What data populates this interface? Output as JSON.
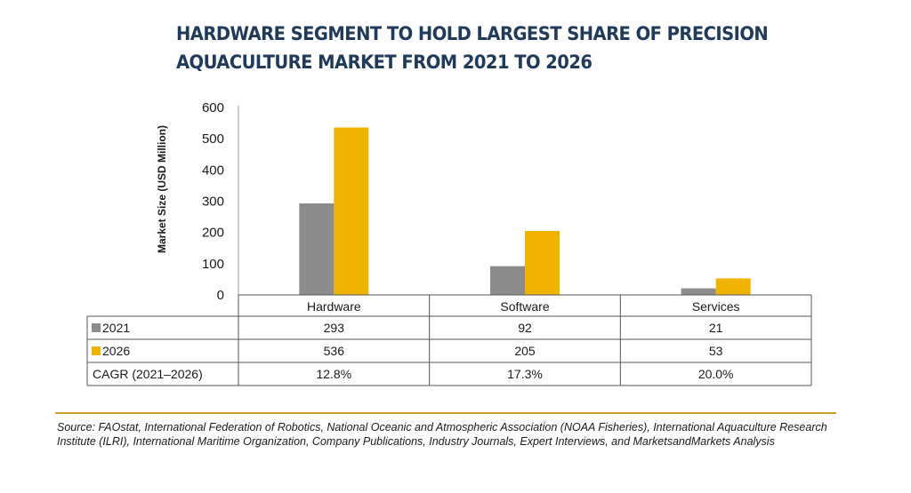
{
  "title": "HARDWARE SEGMENT TO HOLD LARGEST SHARE OF PRECISION AQUACULTURE MARKET FROM 2021 TO 2026",
  "source": "Source: FAOstat, International Federation of Robotics, National Oceanic and Atmospheric Association (NOAA Fisheries), International Aquaculture Research Institute (ILRI), International Maritime Organization, Company Publications, Industry Journals, Expert Interviews, and MarketsandMarkets Analysis",
  "colors": {
    "series_2021": "#8c8c8c",
    "series_2026": "#f0b400",
    "title": "#1f3a5a",
    "footer_rule": "#c9a227"
  },
  "chart_data": {
    "type": "bar",
    "title": "HARDWARE SEGMENT TO HOLD LARGEST SHARE OF PRECISION AQUACULTURE MARKET FROM 2021 TO 2026",
    "ylabel": "Market Size (USD Million)",
    "xlabel": "",
    "ylim": [
      0,
      600
    ],
    "yticks": [
      0,
      100,
      200,
      300,
      400,
      500,
      600
    ],
    "categories": [
      "Hardware",
      "Software",
      "Services"
    ],
    "series": [
      {
        "name": "2021",
        "values": [
          293,
          92,
          21
        ]
      },
      {
        "name": "2026",
        "values": [
          536,
          205,
          53
        ]
      }
    ],
    "table": {
      "rows": [
        {
          "label": "2021",
          "cells": [
            "293",
            "92",
            "21"
          ]
        },
        {
          "label": "2026",
          "cells": [
            "536",
            "205",
            "53"
          ]
        },
        {
          "label": "CAGR (2021–2026)",
          "cells": [
            "12.8%",
            "17.3%",
            "20.0%"
          ]
        }
      ]
    },
    "grid": false,
    "legend": "in data table"
  }
}
